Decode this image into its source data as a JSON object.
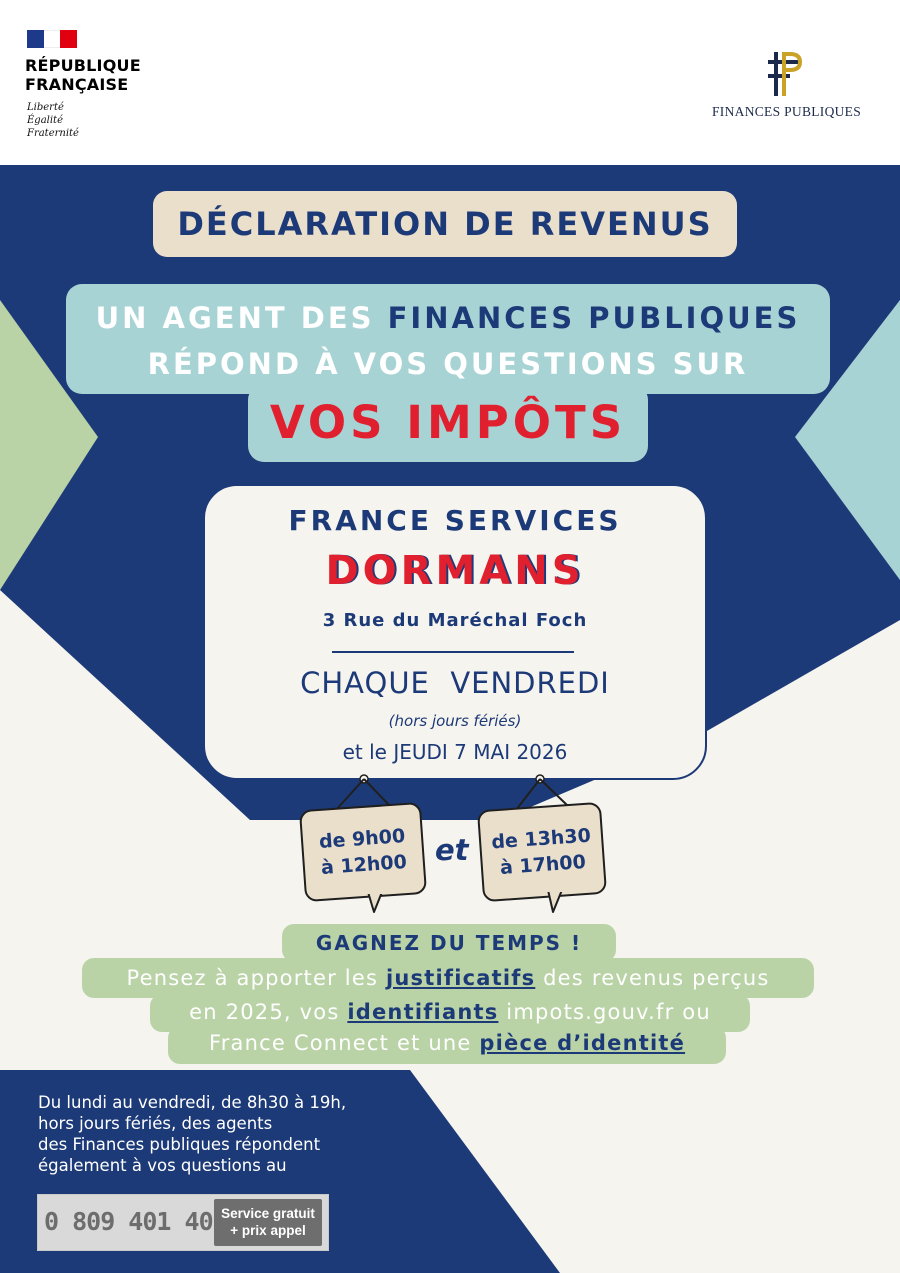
{
  "header": {
    "republique": {
      "name_line1": "RÉPUBLIQUE",
      "name_line2": "FRANÇAISE",
      "motto": [
        "Liberté",
        "Égalité",
        "Fraternité"
      ],
      "flag_colors": [
        "#1d3a8a",
        "#ffffff",
        "#e1000f"
      ]
    },
    "finances_publiques": {
      "logo_icon": "fp-monogram-icon",
      "name": "FINANCES PUBLIQUES"
    }
  },
  "headline": {
    "declaration": "DÉCLARATION DE REVENUS",
    "agent_line1_prefix": "UN AGENT DES ",
    "agent_line1_highlight": "FINANCES PUBLIQUES",
    "agent_line2": "RÉPOND À VOS QUESTIONS SUR",
    "impots": "VOS IMPÔTS"
  },
  "location": {
    "title": "FRANCE SERVICES",
    "city": "DORMANS",
    "address": "3 Rue du Maréchal Foch",
    "schedule": "CHAQUE  VENDREDI",
    "holiday_note": "(hors jours fériés)",
    "extra_date": "et le JEUDI 7 MAI 2026"
  },
  "hours": {
    "morning_line1": "de 9h00",
    "morning_line2": "à 12h00",
    "connector": "et",
    "afternoon_line1": "de 13h30",
    "afternoon_line2": "à 17h00"
  },
  "tips": {
    "title": "GAGNEZ DU TEMPS !",
    "line1_a": "Pensez à apporter les ",
    "line1_link": "justificatifs",
    "line1_b": " des revenus perçus",
    "line2_a": "en 2025, vos ",
    "line2_link": "identifiants",
    "line2_b": " impots.gouv.fr ou",
    "line3_a": "France Connect et une ",
    "line3_link": "pièce d’identité"
  },
  "contact": {
    "lines": [
      "Du lundi au vendredi, de 8h30 à 19h,",
      "hors jours fériés, des agents",
      "des Finances publiques répondent",
      "également à vos questions au"
    ],
    "phone": "0 809 401 401",
    "phone_tag_line1": "Service gratuit",
    "phone_tag_line2": "+ prix appel"
  },
  "colors": {
    "navy": "#1d3a78",
    "teal": "#a8d3d4",
    "sage": "#b9d3a6",
    "sand": "#eadfcb",
    "red": "#e0202e",
    "cream": "#f6f4ef"
  }
}
